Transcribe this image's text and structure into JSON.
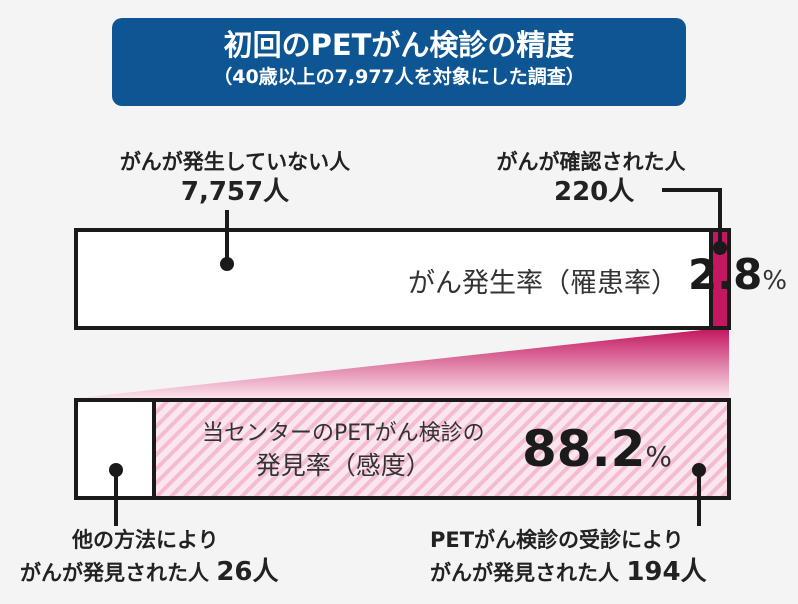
{
  "title": {
    "main": "初回のPETがん検診の精度",
    "sub": "（40歳以上の7,977人を対象にした調査）"
  },
  "chart_data": {
    "type": "bar",
    "bars": [
      {
        "name": "top",
        "segments": [
          {
            "label": "がんが発生していない人",
            "value": 7757,
            "value_label": "7,757人",
            "color": "#ffffff"
          },
          {
            "label": "がんが確認された人",
            "value": 220,
            "value_label": "220人",
            "color": "#c3175f"
          }
        ],
        "rate_label": "がん発生率（罹患率）",
        "rate_value": "2.8",
        "rate_unit": "%"
      },
      {
        "name": "bottom",
        "segments": [
          {
            "label_line1": "他の方法により",
            "label_line2": "がんが発見された人",
            "value": 26,
            "value_label": "26人",
            "color": "#ffffff"
          },
          {
            "label_line1": "PETがん検診の受診により",
            "label_line2": "がんが発見された人",
            "value": 194,
            "value_label": "194人",
            "color": "#f3c2d6"
          }
        ],
        "rate_label_line1": "当センターのPETがん検診の",
        "rate_label_line2": "発見率（感度）",
        "rate_value": "88.2",
        "rate_unit": "%"
      }
    ],
    "colors": {
      "title_bg": "#0e5693",
      "accent": "#c3175f",
      "hatch": "#f3c2d6"
    }
  }
}
